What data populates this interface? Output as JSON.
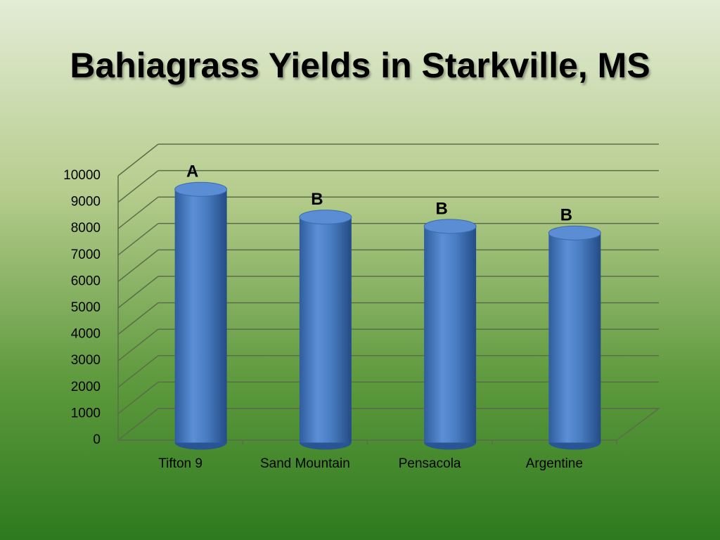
{
  "chart_data": {
    "type": "bar",
    "title": "Bahiagrass Yields in Starkville, MS",
    "categories": [
      "Tifton 9",
      "Sand Mountain",
      "Pensacola",
      "Argentine"
    ],
    "values": [
      9500,
      8450,
      8100,
      7850
    ],
    "annotations": [
      "A",
      "B",
      "B",
      "B"
    ],
    "color": "#4a7ec4",
    "ylim": [
      0,
      10000
    ],
    "yticks": [
      0,
      1000,
      2000,
      3000,
      4000,
      5000,
      6000,
      7000,
      8000,
      9000,
      10000
    ],
    "grid": true
  }
}
